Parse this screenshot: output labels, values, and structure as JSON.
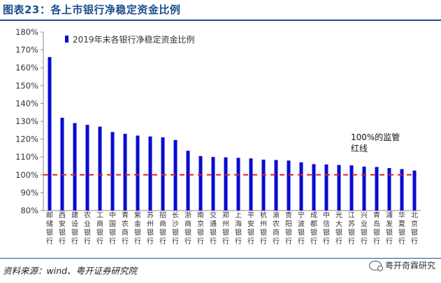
{
  "figure": {
    "title": "图表23：各上市银行净稳定资金比例",
    "source": "资料来源：wind、粤开证券研究院",
    "watermark": "粤开奇霖研究"
  },
  "chart_data": {
    "type": "bar",
    "categories": [
      "邮储银行",
      "西安银行",
      "建设银行",
      "农业银行",
      "工商银行",
      "中国银行",
      "青农商行",
      "紫金银行",
      "苏州银行",
      "招商银行",
      "长沙银行",
      "浙商银行",
      "南京银行",
      "交通银行",
      "郑州银行",
      "上海银行",
      "平安银行",
      "杭州银行",
      "渝农商行",
      "贵阳银行",
      "宁波银行",
      "成都银行",
      "中信银行",
      "光大银行",
      "江苏银行",
      "兴业银行",
      "青岛银行",
      "浦发银行",
      "华夏银行",
      "北京银行"
    ],
    "series": [
      {
        "name": "2019年末各银行净稳定资金比例",
        "values": [
          166,
          132,
          129,
          128,
          127,
          124,
          123,
          122,
          121.5,
          121,
          119.5,
          113.5,
          110.5,
          110,
          109.8,
          109.5,
          109.2,
          108.5,
          108.3,
          108,
          107,
          106,
          105.8,
          105.5,
          105.3,
          104.6,
          104.4,
          103.8,
          103.2,
          102.4
        ]
      }
    ],
    "reference_line": {
      "value": 100,
      "label": "100%的监管红线",
      "color": "#e02020"
    },
    "ylim": [
      80,
      180
    ],
    "yticks": [
      "80%",
      "90%",
      "100%",
      "110%",
      "120%",
      "130%",
      "140%",
      "150%",
      "160%",
      "170%",
      "180%"
    ],
    "bar_color": "#0a0ad2",
    "legend_position": "top-left",
    "grid": false
  }
}
